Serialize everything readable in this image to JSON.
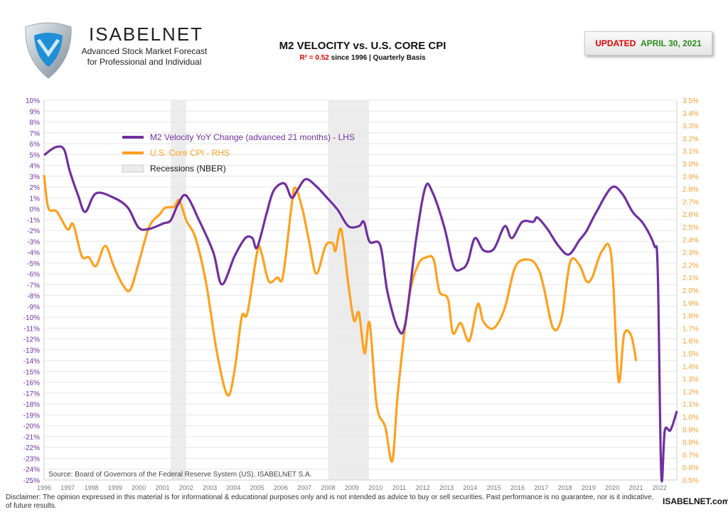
{
  "header": {
    "logo_name": "ISABELNET",
    "logo_line1": "Advanced Stock Market Forecast",
    "logo_line2": "for Professional and Individual",
    "updated_label": "UPDATED",
    "updated_date": "APRIL 30, 2021"
  },
  "footer": {
    "disclaimer": "Disclaimer: The opinion expressed in this material is for informational & educational purposes only and is not intended as advice to buy or sell securities. Past performance is no guarantee, nor is it indicative, of future results.",
    "brand": "ISABELNET.com"
  },
  "colors": {
    "m2": "#7030a0",
    "cpi": "#ffa01e",
    "recession": "#ececec",
    "r2": "#e00000",
    "updated": "#e00000",
    "date": "#2e8b20"
  },
  "chart_data": {
    "type": "line",
    "title": "M2 VELOCITY vs. U.S. CORE CPI",
    "subtitle_r2": "R² = 0.52",
    "subtitle_rest": " since 1996 | Quarterly Basis",
    "source": "Source: Board of Governors of the Federal Reserve System (US), ISABELNET S.A.",
    "grid": true,
    "legend_placement": "top-left",
    "xlim": [
      1996,
      2022.75
    ],
    "x_ticks": [
      "1996",
      "1997",
      "1998",
      "1999",
      "2000",
      "2001",
      "2002",
      "2003",
      "2004",
      "2005",
      "2006",
      "2007",
      "2008",
      "2009",
      "2010",
      "2011",
      "2012",
      "2013",
      "2014",
      "2015",
      "2016",
      "2017",
      "2018",
      "2019",
      "2020",
      "2021",
      "2022"
    ],
    "ylim_left": [
      -25,
      10
    ],
    "ylim_right": [
      0.5,
      3.5
    ],
    "left_ticks": [
      "10%",
      "9%",
      "8%",
      "7%",
      "6%",
      "5%",
      "4%",
      "3%",
      "2%",
      "1%",
      "0%",
      "-1%",
      "-2%",
      "-3%",
      "-4%",
      "-5%",
      "-6%",
      "-7%",
      "-8%",
      "-9%",
      "-10%",
      "-11%",
      "-12%",
      "-13%",
      "-14%",
      "-15%",
      "-16%",
      "-17%",
      "-18%",
      "-19%",
      "-20%",
      "-21%",
      "-22%",
      "-23%",
      "-24%",
      "-25%"
    ],
    "right_ticks": [
      "3.5%",
      "3.4%",
      "3.3%",
      "3.2%",
      "3.1%",
      "3.0%",
      "2.9%",
      "2.8%",
      "2.7%",
      "2.6%",
      "2.5%",
      "2.4%",
      "2.3%",
      "2.2%",
      "2.1%",
      "2.0%",
      "1.9%",
      "1.8%",
      "1.7%",
      "1.6%",
      "1.5%",
      "1.4%",
      "1.3%",
      "1.2%",
      "1.1%",
      "1.0%",
      "0.9%",
      "0.8%",
      "0.7%",
      "0.6%",
      "0.5%"
    ],
    "recessions": {
      "name": "Recessions (NBER)",
      "periods": [
        [
          2001.35,
          2002.0
        ],
        [
          2008.0,
          2009.72
        ]
      ]
    },
    "series": [
      {
        "name": "M2 Velocity YoY Change (advanced 21 months) - LHS",
        "axis": "left",
        "x": [
          1996.0,
          1996.48,
          1996.84,
          1997.08,
          1997.44,
          1997.74,
          1998.19,
          1998.94,
          1999.54,
          1999.99,
          2000.44,
          2001.05,
          2001.35,
          2001.65,
          2002.0,
          2002.55,
          2003.15,
          2003.51,
          2004.05,
          2004.5,
          2004.8,
          2005.0,
          2005.4,
          2005.7,
          2006.15,
          2006.45,
          2006.69,
          2007.05,
          2007.5,
          2007.95,
          2008.4,
          2008.85,
          2009.3,
          2009.51,
          2009.75,
          2010.2,
          2010.5,
          2010.95,
          2011.26,
          2011.7,
          2012.1,
          2012.4,
          2012.91,
          2013.3,
          2013.66,
          2013.9,
          2014.2,
          2014.56,
          2015.0,
          2015.46,
          2015.76,
          2016.2,
          2016.66,
          2016.84,
          2017.26,
          2017.71,
          2018.16,
          2018.61,
          2018.91,
          2019.3,
          2019.96,
          2020.41,
          2020.86,
          2021.32,
          2021.77,
          2021.92,
          2022.07,
          2022.22,
          2022.46,
          2022.73
        ],
        "y": [
          4.95,
          5.67,
          5.48,
          3.51,
          1.22,
          -0.29,
          1.42,
          1.02,
          0.1,
          -1.73,
          -1.86,
          -1.34,
          -1.07,
          0.37,
          1.22,
          -1.07,
          -4.02,
          -6.97,
          -4.35,
          -2.71,
          -2.71,
          -3.56,
          -0.42,
          1.68,
          2.33,
          1.02,
          1.68,
          2.73,
          2.07,
          1.02,
          -0.09,
          -1.6,
          -1.6,
          -1.21,
          -3.04,
          -3.37,
          -7.63,
          -11.04,
          -10.58,
          -3.04,
          1.94,
          1.55,
          -1.73,
          -5.33,
          -5.53,
          -4.88,
          -2.71,
          -3.83,
          -3.7,
          -1.6,
          -2.71,
          -1.21,
          -1.21,
          -0.81,
          -1.86,
          -3.37,
          -4.22,
          -2.91,
          -2.06,
          -0.42,
          1.94,
          1.42,
          -0.29,
          -1.4,
          -3.37,
          -5.66,
          -24.53,
          -20.41,
          -20.41,
          -18.64
        ]
      },
      {
        "name": "U.S. Core CPI - RHS",
        "axis": "right",
        "x": [
          1996.0,
          1996.18,
          1996.54,
          1996.99,
          1997.23,
          1997.59,
          1997.89,
          1998.19,
          1998.58,
          1998.94,
          1999.3,
          1999.63,
          1999.99,
          2000.44,
          2000.89,
          2001.11,
          2001.5,
          2001.71,
          2002.01,
          2002.4,
          2002.85,
          2003.3,
          2003.75,
          2004.05,
          2004.35,
          2004.59,
          2005.01,
          2005.19,
          2005.49,
          2005.85,
          2006.09,
          2006.45,
          2006.6,
          2006.9,
          2007.2,
          2007.5,
          2007.89,
          2008.19,
          2008.31,
          2008.55,
          2008.85,
          2009.09,
          2009.3,
          2009.54,
          2009.75,
          2010.05,
          2010.41,
          2010.71,
          2010.95,
          2011.41,
          2011.8,
          2012.16,
          2012.46,
          2012.7,
          2013.06,
          2013.27,
          2013.6,
          2013.96,
          2014.32,
          2014.56,
          2015.0,
          2015.46,
          2015.92,
          2016.51,
          2016.87,
          2017.11,
          2017.5,
          2017.86,
          2018.22,
          2018.61,
          2018.91,
          2019.15,
          2019.57,
          2019.96,
          2020.26,
          2020.5,
          2020.8,
          2021.01
        ],
        "y": [
          2.91,
          2.65,
          2.62,
          2.48,
          2.52,
          2.27,
          2.26,
          2.19,
          2.35,
          2.19,
          2.05,
          2.0,
          2.21,
          2.5,
          2.6,
          2.65,
          2.66,
          2.71,
          2.55,
          2.41,
          2.05,
          1.51,
          1.17,
          1.37,
          1.79,
          1.82,
          2.31,
          2.29,
          2.07,
          2.1,
          2.11,
          2.66,
          2.81,
          2.65,
          2.38,
          2.13,
          2.35,
          2.37,
          2.31,
          2.48,
          2.05,
          1.76,
          1.82,
          1.5,
          1.74,
          1.09,
          0.92,
          0.65,
          1.2,
          1.93,
          2.2,
          2.26,
          2.24,
          1.99,
          1.93,
          1.66,
          1.74,
          1.6,
          1.89,
          1.75,
          1.7,
          1.86,
          2.19,
          2.24,
          2.17,
          2.02,
          1.7,
          1.78,
          2.22,
          2.2,
          2.07,
          2.1,
          2.31,
          2.27,
          1.29,
          1.65,
          1.64,
          1.44
        ]
      }
    ]
  }
}
